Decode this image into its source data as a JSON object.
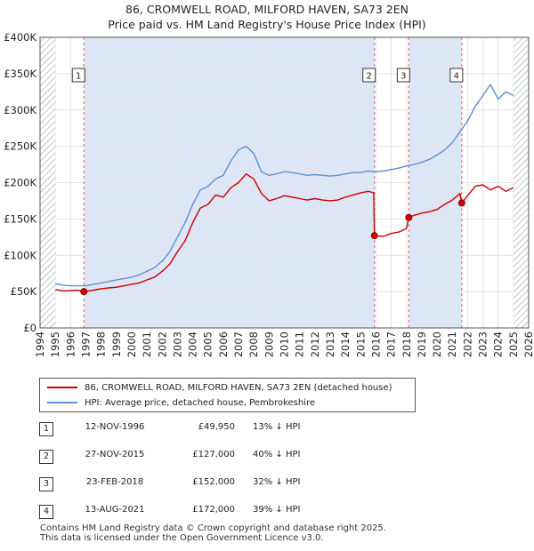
{
  "title": {
    "line1": "86, CROMWELL ROAD, MILFORD HAVEN, SA73 2EN",
    "line2": "Price paid vs. HM Land Registry's House Price Index (HPI)"
  },
  "colors": {
    "property": "#cc0000",
    "hpi": "#5b8fd6",
    "shade": "#dde6f6",
    "marker_line": "#e06666",
    "grid": "#e4e4e4"
  },
  "legend": {
    "property_label": "86, CROMWELL ROAD, MILFORD HAVEN, SA73 2EN (detached house)",
    "hpi_label": "HPI: Average price, detached house, Pembrokeshire"
  },
  "transactions": [
    {
      "num": "1",
      "date": "12-NOV-1996",
      "price": "£49,950",
      "hpi": "13% ↓ HPI"
    },
    {
      "num": "2",
      "date": "27-NOV-2015",
      "price": "£127,000",
      "hpi": "40% ↓ HPI"
    },
    {
      "num": "3",
      "date": "23-FEB-2018",
      "price": "£152,000",
      "hpi": "32% ↓ HPI"
    },
    {
      "num": "4",
      "date": "13-AUG-2021",
      "price": "£172,000",
      "hpi": "39% ↓ HPI"
    }
  ],
  "footer": {
    "line1": "Contains HM Land Registry data © Crown copyright and database right 2025.",
    "line2": "This data is licensed under the Open Government Licence v3.0."
  },
  "chart_data": {
    "type": "line",
    "title": "86, CROMWELL ROAD, MILFORD HAVEN, SA73 2EN — Price paid vs. HM Land Registry's House Price Index (HPI)",
    "xlabel": "",
    "ylabel": "",
    "xlim": [
      1994,
      2026
    ],
    "ylim": [
      0,
      400000
    ],
    "x_ticks": [
      1994,
      1995,
      1996,
      1997,
      1998,
      1999,
      2000,
      2001,
      2002,
      2003,
      2004,
      2005,
      2006,
      2007,
      2008,
      2009,
      2010,
      2011,
      2012,
      2013,
      2014,
      2015,
      2016,
      2017,
      2018,
      2019,
      2020,
      2021,
      2022,
      2023,
      2024,
      2025,
      2026
    ],
    "y_ticks": [
      0,
      50000,
      100000,
      150000,
      200000,
      250000,
      300000,
      350000,
      400000
    ],
    "y_tick_labels": [
      "£0",
      "£50K",
      "£100K",
      "£150K",
      "£200K",
      "£250K",
      "£300K",
      "£350K",
      "£400K"
    ],
    "hatched_ranges": [
      [
        1994,
        1995
      ],
      [
        2025,
        2026
      ]
    ],
    "series": [
      {
        "name": "86, CROMWELL ROAD, MILFORD HAVEN, SA73 2EN (detached house)",
        "x": [
          1995.0,
          1995.5,
          1996.0,
          1996.5,
          1996.87,
          1997.5,
          1998.0,
          1998.5,
          1999.0,
          1999.5,
          2000.0,
          2000.5,
          2001.0,
          2001.5,
          2002.0,
          2002.5,
          2003.0,
          2003.5,
          2004.0,
          2004.5,
          2005.0,
          2005.5,
          2006.0,
          2006.5,
          2007.0,
          2007.5,
          2008.0,
          2008.5,
          2009.0,
          2009.5,
          2010.0,
          2010.5,
          2011.0,
          2011.5,
          2012.0,
          2012.5,
          2013.0,
          2013.5,
          2014.0,
          2014.5,
          2015.0,
          2015.5,
          2015.85,
          2015.9,
          2016.5,
          2017.0,
          2017.5,
          2018.0,
          2018.15,
          2018.5,
          2019.0,
          2019.5,
          2020.0,
          2020.5,
          2021.0,
          2021.5,
          2021.62,
          2022.0,
          2022.5,
          2023.0,
          2023.5,
          2024.0,
          2024.5,
          2025.0
        ],
        "values": [
          53000,
          51000,
          51500,
          52000,
          49950,
          52000,
          54000,
          55000,
          56000,
          58000,
          60000,
          62000,
          66000,
          70000,
          78000,
          88000,
          105000,
          120000,
          145000,
          165000,
          170000,
          183000,
          180000,
          193000,
          200000,
          212000,
          205000,
          185000,
          175000,
          178000,
          182000,
          180000,
          178000,
          176000,
          178000,
          176000,
          175000,
          176000,
          180000,
          183000,
          186000,
          188000,
          186000,
          127000,
          126000,
          130000,
          132000,
          137000,
          152000,
          155000,
          158000,
          160000,
          163000,
          170000,
          176000,
          185000,
          172000,
          182000,
          195000,
          197000,
          190000,
          195000,
          188000,
          193000
        ]
      },
      {
        "name": "HPI: Average price, detached house, Pembrokeshire",
        "x": [
          1995.0,
          1995.5,
          1996.0,
          1996.5,
          1997.0,
          1997.5,
          1998.0,
          1998.5,
          1999.0,
          1999.5,
          2000.0,
          2000.5,
          2001.0,
          2001.5,
          2002.0,
          2002.5,
          2003.0,
          2003.5,
          2004.0,
          2004.5,
          2005.0,
          2005.5,
          2006.0,
          2006.5,
          2007.0,
          2007.5,
          2008.0,
          2008.5,
          2009.0,
          2009.5,
          2010.0,
          2010.5,
          2011.0,
          2011.5,
          2012.0,
          2012.5,
          2013.0,
          2013.5,
          2014.0,
          2014.5,
          2015.0,
          2015.5,
          2016.0,
          2016.5,
          2017.0,
          2017.5,
          2018.0,
          2018.5,
          2019.0,
          2019.5,
          2020.0,
          2020.5,
          2021.0,
          2021.5,
          2022.0,
          2022.5,
          2023.0,
          2023.5,
          2024.0,
          2024.5,
          2025.0
        ],
        "values": [
          61000,
          59000,
          58000,
          58000,
          58000,
          60000,
          62000,
          64000,
          66000,
          68000,
          70000,
          73000,
          78000,
          83000,
          92000,
          105000,
          125000,
          145000,
          170000,
          190000,
          195000,
          205000,
          210000,
          230000,
          245000,
          250000,
          240000,
          215000,
          210000,
          212000,
          215000,
          214000,
          212000,
          210000,
          211000,
          210000,
          209000,
          210000,
          212000,
          214000,
          214000,
          216000,
          215000,
          216000,
          218000,
          220000,
          223000,
          225000,
          228000,
          232000,
          238000,
          245000,
          255000,
          270000,
          285000,
          305000,
          320000,
          335000,
          315000,
          325000,
          320000
        ]
      }
    ],
    "annotations": [
      {
        "label": "1",
        "x": 1996.87,
        "y": 49950
      },
      {
        "label": "2",
        "x": 2015.9,
        "y": 127000
      },
      {
        "label": "3",
        "x": 2018.15,
        "y": 152000
      },
      {
        "label": "4",
        "x": 2021.62,
        "y": 172000
      }
    ]
  }
}
